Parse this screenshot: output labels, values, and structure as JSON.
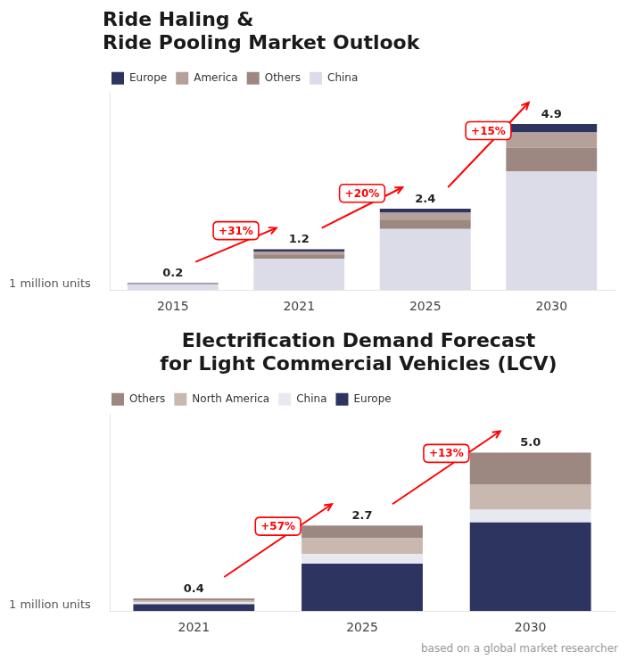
{
  "chart_data": [
    {
      "type": "bar",
      "title": [
        "Ride Haling &",
        "Ride Pooling Market Outlook"
      ],
      "ylabel": "1 million units",
      "categories": [
        "2015",
        "2021",
        "2025",
        "2030"
      ],
      "series": [
        {
          "name": "China",
          "color": "#dcdce8",
          "values": [
            0.155,
            0.92,
            1.8,
            3.5
          ]
        },
        {
          "name": "Others",
          "color": "#9c8880",
          "values": [
            0.015,
            0.13,
            0.28,
            0.7
          ]
        },
        {
          "name": "America",
          "color": "#b5a09a",
          "values": [
            0.015,
            0.09,
            0.2,
            0.45
          ]
        },
        {
          "name": "Europe",
          "color": "#2d3460",
          "values": [
            0.015,
            0.06,
            0.12,
            0.25
          ]
        }
      ],
      "totals": [
        0.2,
        1.2,
        2.4,
        4.9
      ],
      "annotations": [
        {
          "text": "+31%",
          "from": "2015",
          "to": "2021",
          "color": "#ff0000"
        },
        {
          "text": "+20%",
          "from": "2021",
          "to": "2025",
          "color": "#ff0000"
        },
        {
          "text": "+15%",
          "from": "2025",
          "to": "2030",
          "color": "#ff0000"
        }
      ],
      "ylim": [
        0,
        5.8
      ],
      "stacked": true,
      "grid": false,
      "tick_labels": "x",
      "legend": "upper left"
    },
    {
      "type": "bar",
      "title": [
        "Electrification Demand Forecast",
        "for Light Commercial Vehicles (LCV)"
      ],
      "ylabel": "1 million units",
      "categories": [
        "2021",
        "2025",
        "2030"
      ],
      "series": [
        {
          "name": "Europe",
          "color": "#2d3460",
          "values": [
            0.22,
            1.5,
            2.8
          ]
        },
        {
          "name": "China",
          "color": "#e8e8f0",
          "values": [
            0.06,
            0.3,
            0.4
          ]
        },
        {
          "name": "North America",
          "color": "#c8b8b0",
          "values": [
            0.06,
            0.5,
            0.8
          ]
        },
        {
          "name": "Others",
          "color": "#9c8880",
          "values": [
            0.06,
            0.4,
            1.0
          ]
        }
      ],
      "totals": [
        0.4,
        2.7,
        5.0
      ],
      "total_labels": [
        "0.4",
        "2.7",
        "5.0"
      ],
      "annotations": [
        {
          "text": "+57%",
          "from": "2021",
          "to": "2025",
          "color": "#ff0000"
        },
        {
          "text": "+13%",
          "from": "2025",
          "to": "2030",
          "color": "#ff0000"
        }
      ],
      "ylim": [
        0,
        6.2
      ],
      "stacked": true,
      "grid": false,
      "tick_labels": "x",
      "legend": "upper left",
      "footnote": "based on a global market researcher"
    }
  ]
}
